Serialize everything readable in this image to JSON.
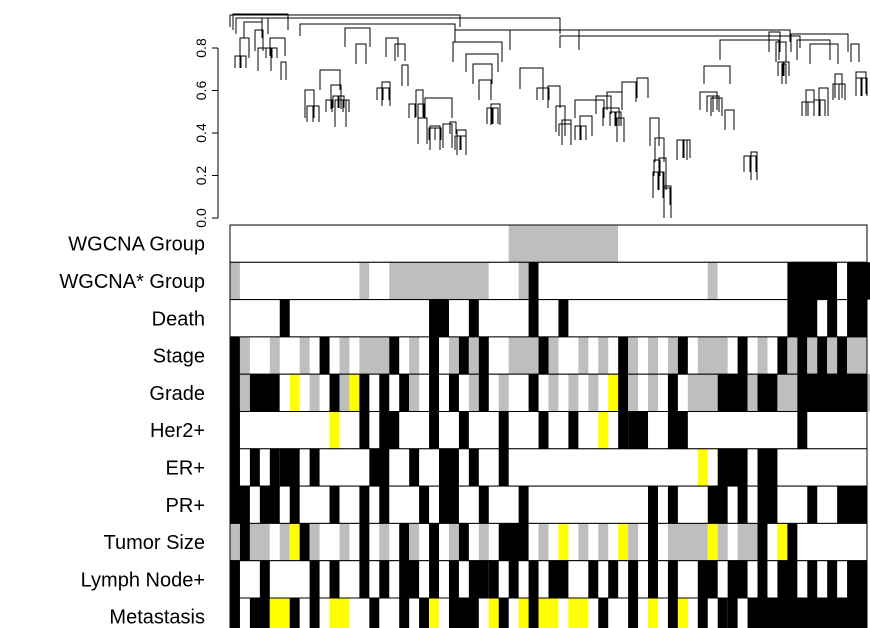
{
  "chart_data": {
    "type": "heatmap",
    "title": "",
    "dendrogram": {
      "ylabel": "",
      "yticks": [
        "0.0",
        "0.2",
        "0.4",
        "0.6",
        "0.8"
      ],
      "ylim": [
        0.0,
        0.96
      ],
      "merge_heights_approx": [
        0.96,
        0.94,
        0.92,
        0.9,
        0.88,
        0.85,
        0.8,
        0.75,
        0.72,
        0.68,
        0.65,
        0.6,
        0.55,
        0.5,
        0.45,
        0.4,
        0.35,
        0.3,
        0.2,
        0.1
      ]
    },
    "palette": {
      "1": "#000000",
      "2": "#bebebe",
      "3": "#ffff00",
      "0": "#ffffff"
    },
    "n_samples": 100,
    "rows": [
      {
        "label": "WGCNA Group",
        "segments": [
          [
            0,
            28,
            0
          ],
          [
            28,
            39,
            2
          ],
          [
            39,
            66,
            0
          ],
          [
            66,
            100,
            1
          ]
        ]
      },
      {
        "label": "WGCNA* Group",
        "segments": [
          [
            0,
            1,
            2
          ],
          [
            1,
            13,
            0
          ],
          [
            13,
            14,
            2
          ],
          [
            14,
            16,
            0
          ],
          [
            16,
            26,
            2
          ],
          [
            26,
            29,
            0
          ],
          [
            29,
            30,
            2
          ],
          [
            30,
            31,
            1
          ],
          [
            31,
            48,
            0
          ],
          [
            48,
            49,
            2
          ],
          [
            49,
            56,
            0
          ],
          [
            56,
            61,
            1
          ],
          [
            61,
            62,
            0
          ],
          [
            62,
            65,
            1
          ]
        ]
      },
      {
        "label": "Death",
        "segments": [
          [
            5,
            6,
            1
          ],
          [
            20,
            22,
            1
          ],
          [
            24,
            25,
            1
          ],
          [
            30,
            31,
            1
          ],
          [
            33,
            34,
            1
          ],
          [
            56,
            59,
            1
          ],
          [
            60,
            61,
            1
          ],
          [
            62,
            64,
            1
          ]
        ]
      },
      {
        "label": "Stage",
        "segments": [
          [
            0,
            1,
            1
          ],
          [
            1,
            2,
            2
          ],
          [
            4,
            5,
            2
          ],
          [
            7,
            8,
            2
          ],
          [
            9,
            10,
            1
          ],
          [
            11,
            12,
            2
          ],
          [
            13,
            16,
            2
          ],
          [
            16,
            17,
            1
          ],
          [
            18,
            19,
            2
          ],
          [
            20,
            21,
            1
          ],
          [
            22,
            23,
            2
          ],
          [
            23,
            24,
            1
          ],
          [
            24,
            25,
            2
          ],
          [
            25,
            26,
            1
          ],
          [
            28,
            31,
            2
          ],
          [
            31,
            32,
            1
          ],
          [
            32,
            33,
            2
          ],
          [
            35,
            36,
            2
          ],
          [
            37,
            38,
            2
          ],
          [
            39,
            40,
            1
          ],
          [
            40,
            41,
            2
          ],
          [
            42,
            43,
            2
          ],
          [
            44,
            45,
            2
          ],
          [
            45,
            46,
            1
          ],
          [
            47,
            50,
            2
          ],
          [
            51,
            52,
            1
          ],
          [
            53,
            54,
            2
          ],
          [
            55,
            56,
            1
          ],
          [
            56,
            57,
            2
          ],
          [
            57,
            58,
            1
          ],
          [
            58,
            59,
            2
          ],
          [
            59,
            60,
            1
          ],
          [
            60,
            61,
            2
          ],
          [
            61,
            62,
            1
          ],
          [
            62,
            64,
            2
          ]
        ]
      },
      {
        "label": "Grade",
        "segments": [
          [
            0,
            1,
            1
          ],
          [
            1,
            2,
            2
          ],
          [
            2,
            5,
            1
          ],
          [
            5,
            6,
            0
          ],
          [
            6,
            7,
            3
          ],
          [
            8,
            9,
            2
          ],
          [
            10,
            11,
            1
          ],
          [
            11,
            12,
            2
          ],
          [
            12,
            13,
            3
          ],
          [
            13,
            14,
            1
          ],
          [
            15,
            16,
            1
          ],
          [
            17,
            18,
            1
          ],
          [
            18,
            19,
            2
          ],
          [
            20,
            21,
            1
          ],
          [
            22,
            23,
            1
          ],
          [
            24,
            25,
            2
          ],
          [
            25,
            26,
            1
          ],
          [
            27,
            28,
            2
          ],
          [
            30,
            31,
            1
          ],
          [
            32,
            33,
            2
          ],
          [
            34,
            35,
            2
          ],
          [
            36,
            37,
            2
          ],
          [
            38,
            39,
            3
          ],
          [
            39,
            40,
            1
          ],
          [
            40,
            41,
            2
          ],
          [
            42,
            43,
            2
          ],
          [
            44,
            45,
            1
          ],
          [
            46,
            49,
            2
          ],
          [
            49,
            52,
            1
          ],
          [
            52,
            53,
            2
          ],
          [
            53,
            55,
            1
          ],
          [
            55,
            57,
            2
          ],
          [
            57,
            64,
            1
          ],
          [
            64,
            65,
            2
          ]
        ]
      },
      {
        "label": "Her2+",
        "segments": [
          [
            0,
            1,
            1
          ],
          [
            10,
            11,
            3
          ],
          [
            13,
            14,
            1
          ],
          [
            15,
            17,
            1
          ],
          [
            20,
            21,
            1
          ],
          [
            23,
            24,
            1
          ],
          [
            27,
            28,
            1
          ],
          [
            31,
            32,
            1
          ],
          [
            34,
            35,
            1
          ],
          [
            37,
            38,
            3
          ],
          [
            39,
            40,
            1
          ],
          [
            40,
            42,
            1
          ],
          [
            44,
            46,
            1
          ],
          [
            57,
            58,
            1
          ]
        ]
      },
      {
        "label": "ER+",
        "segments": [
          [
            0,
            1,
            1
          ],
          [
            2,
            3,
            1
          ],
          [
            4,
            5,
            1
          ],
          [
            5,
            7,
            1
          ],
          [
            8,
            9,
            1
          ],
          [
            14,
            16,
            1
          ],
          [
            18,
            19,
            1
          ],
          [
            21,
            23,
            1
          ],
          [
            24,
            25,
            1
          ],
          [
            27,
            28,
            1
          ],
          [
            47,
            48,
            3
          ],
          [
            49,
            52,
            1
          ],
          [
            53,
            55,
            1
          ]
        ]
      },
      {
        "label": "PR+",
        "segments": [
          [
            0,
            2,
            1
          ],
          [
            3,
            5,
            1
          ],
          [
            6,
            7,
            1
          ],
          [
            10,
            11,
            1
          ],
          [
            13,
            14,
            1
          ],
          [
            15,
            16,
            1
          ],
          [
            19,
            20,
            1
          ],
          [
            21,
            23,
            1
          ],
          [
            25,
            26,
            1
          ],
          [
            29,
            30,
            1
          ],
          [
            42,
            43,
            1
          ],
          [
            44,
            45,
            1
          ],
          [
            48,
            50,
            1
          ],
          [
            51,
            52,
            1
          ],
          [
            53,
            55,
            1
          ],
          [
            58,
            59,
            1
          ],
          [
            61,
            64,
            1
          ]
        ]
      },
      {
        "label": "Tumor Size",
        "segments": [
          [
            0,
            1,
            2
          ],
          [
            1,
            2,
            1
          ],
          [
            2,
            4,
            2
          ],
          [
            4,
            5,
            0
          ],
          [
            5,
            6,
            2
          ],
          [
            6,
            7,
            3
          ],
          [
            7,
            8,
            1
          ],
          [
            8,
            9,
            2
          ],
          [
            11,
            12,
            2
          ],
          [
            13,
            14,
            1
          ],
          [
            15,
            16,
            2
          ],
          [
            17,
            18,
            1
          ],
          [
            18,
            19,
            2
          ],
          [
            20,
            21,
            1
          ],
          [
            22,
            23,
            2
          ],
          [
            23,
            24,
            1
          ],
          [
            25,
            26,
            2
          ],
          [
            27,
            30,
            1
          ],
          [
            31,
            32,
            2
          ],
          [
            33,
            34,
            3
          ],
          [
            35,
            36,
            2
          ],
          [
            37,
            38,
            2
          ],
          [
            39,
            40,
            3
          ],
          [
            40,
            41,
            2
          ],
          [
            42,
            43,
            1
          ],
          [
            44,
            48,
            2
          ],
          [
            48,
            49,
            3
          ],
          [
            49,
            50,
            2
          ],
          [
            51,
            53,
            2
          ],
          [
            53,
            54,
            1
          ],
          [
            55,
            56,
            3
          ],
          [
            56,
            57,
            1
          ]
        ]
      },
      {
        "label": "Lymph Node+",
        "segments": [
          [
            0,
            1,
            1
          ],
          [
            3,
            4,
            1
          ],
          [
            8,
            9,
            1
          ],
          [
            10,
            11,
            1
          ],
          [
            13,
            14,
            1
          ],
          [
            15,
            16,
            1
          ],
          [
            17,
            19,
            1
          ],
          [
            20,
            21,
            1
          ],
          [
            22,
            23,
            1
          ],
          [
            24,
            26,
            1
          ],
          [
            26,
            27,
            1
          ],
          [
            28,
            29,
            1
          ],
          [
            30,
            31,
            1
          ],
          [
            32,
            34,
            1
          ],
          [
            36,
            37,
            1
          ],
          [
            38,
            39,
            1
          ],
          [
            40,
            41,
            1
          ],
          [
            42,
            43,
            1
          ],
          [
            44,
            45,
            1
          ],
          [
            47,
            49,
            1
          ],
          [
            50,
            52,
            1
          ],
          [
            53,
            54,
            1
          ],
          [
            55,
            57,
            1
          ],
          [
            58,
            59,
            1
          ],
          [
            60,
            61,
            1
          ],
          [
            62,
            64,
            1
          ]
        ]
      },
      {
        "label": "Metastasis",
        "segments": [
          [
            0,
            1,
            1
          ],
          [
            2,
            4,
            1
          ],
          [
            4,
            6,
            3
          ],
          [
            6,
            7,
            1
          ],
          [
            8,
            9,
            1
          ],
          [
            10,
            12,
            3
          ],
          [
            14,
            15,
            1
          ],
          [
            17,
            18,
            1
          ],
          [
            19,
            20,
            1
          ],
          [
            20,
            21,
            3
          ],
          [
            22,
            25,
            1
          ],
          [
            26,
            27,
            3
          ],
          [
            27,
            28,
            1
          ],
          [
            29,
            30,
            3
          ],
          [
            30,
            31,
            1
          ],
          [
            31,
            33,
            3
          ],
          [
            34,
            36,
            3
          ],
          [
            37,
            38,
            1
          ],
          [
            40,
            41,
            1
          ],
          [
            42,
            43,
            3
          ],
          [
            44,
            45,
            1
          ],
          [
            45,
            46,
            3
          ],
          [
            47,
            48,
            1
          ],
          [
            49,
            50,
            1
          ],
          [
            50,
            51,
            1
          ],
          [
            52,
            53,
            1
          ],
          [
            53,
            64,
            1
          ]
        ]
      }
    ]
  }
}
